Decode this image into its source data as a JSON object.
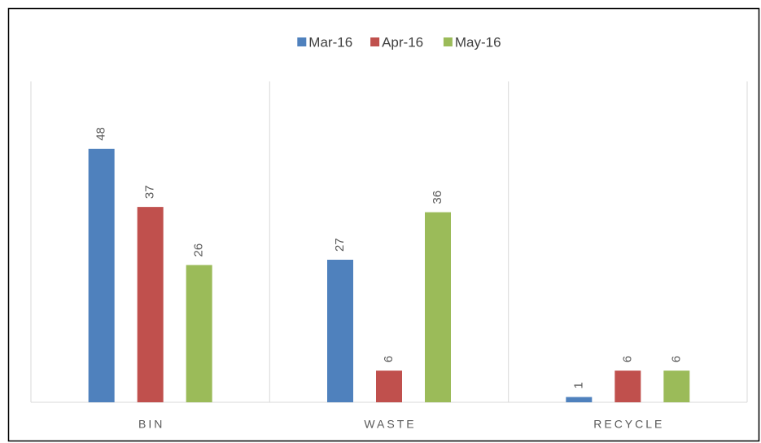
{
  "chart_data": {
    "type": "bar",
    "categories": [
      "BIN",
      "WASTE",
      "RECYCLE"
    ],
    "series": [
      {
        "name": "Mar-16",
        "color": "#4f81bd",
        "values": [
          48,
          27,
          1
        ]
      },
      {
        "name": "Apr-16",
        "color": "#c0504d",
        "values": [
          37,
          6,
          6
        ]
      },
      {
        "name": "May-16",
        "color": "#9bbb59",
        "values": [
          26,
          36,
          6
        ]
      }
    ],
    "ylim": [
      0,
      60
    ]
  }
}
